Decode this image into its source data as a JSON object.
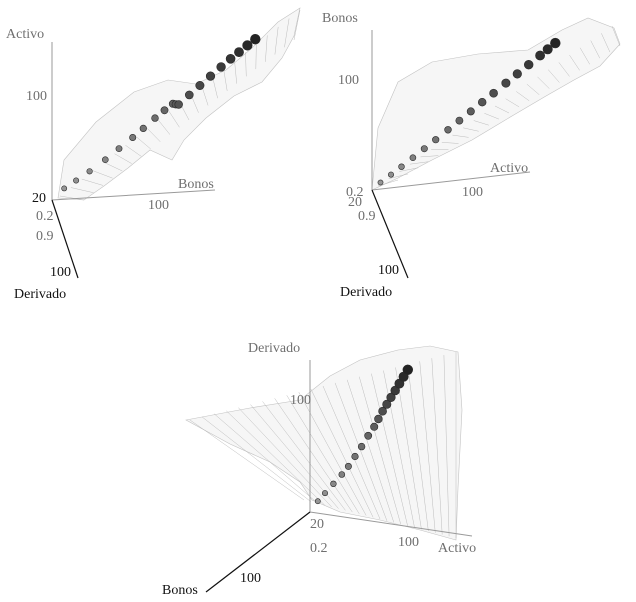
{
  "chart_data": [
    {
      "type": "scatter",
      "panel": "top-left",
      "axes": {
        "vertical": {
          "label": "Activo",
          "ticks": [
            "100",
            "20"
          ]
        },
        "right": {
          "label": "Bonos",
          "ticks": [
            "100"
          ]
        },
        "front": {
          "label": "Derivado",
          "ticks": [
            "0.2",
            "0.9",
            "100"
          ]
        }
      },
      "points": [
        {
          "x": 5,
          "y": 8,
          "z": 20
        },
        {
          "x": 12,
          "y": 10,
          "z": 22
        },
        {
          "x": 20,
          "y": 12,
          "z": 26
        },
        {
          "x": 28,
          "y": 18,
          "z": 32
        },
        {
          "x": 34,
          "y": 26,
          "z": 40
        },
        {
          "x": 40,
          "y": 34,
          "z": 48
        },
        {
          "x": 44,
          "y": 42,
          "z": 56
        },
        {
          "x": 48,
          "y": 52,
          "z": 64
        },
        {
          "x": 52,
          "y": 58,
          "z": 70
        },
        {
          "x": 56,
          "y": 62,
          "z": 74
        },
        {
          "x": 60,
          "y": 56,
          "z": 66
        },
        {
          "x": 64,
          "y": 50,
          "z": 60
        },
        {
          "x": 68,
          "y": 58,
          "z": 72
        },
        {
          "x": 72,
          "y": 66,
          "z": 82
        },
        {
          "x": 76,
          "y": 74,
          "z": 92
        },
        {
          "x": 80,
          "y": 82,
          "z": 100
        },
        {
          "x": 84,
          "y": 88,
          "z": 108
        },
        {
          "x": 88,
          "y": 92,
          "z": 114
        },
        {
          "x": 92,
          "y": 96,
          "z": 120
        },
        {
          "x": 96,
          "y": 99,
          "z": 126
        }
      ]
    },
    {
      "type": "scatter",
      "panel": "top-right",
      "axes": {
        "vertical": {
          "label": "Bonos",
          "ticks": [
            "100",
            "0.2"
          ]
        },
        "right": {
          "label": "Activo",
          "ticks": [
            "100"
          ]
        },
        "front": {
          "label": "Derivado",
          "ticks": [
            "20",
            "0.9",
            "100"
          ]
        }
      },
      "points": [
        {
          "x": 4,
          "y": 6,
          "z": 10
        },
        {
          "x": 10,
          "y": 10,
          "z": 14
        },
        {
          "x": 16,
          "y": 14,
          "z": 18
        },
        {
          "x": 22,
          "y": 20,
          "z": 24
        },
        {
          "x": 28,
          "y": 26,
          "z": 30
        },
        {
          "x": 34,
          "y": 32,
          "z": 36
        },
        {
          "x": 40,
          "y": 40,
          "z": 42
        },
        {
          "x": 46,
          "y": 46,
          "z": 50
        },
        {
          "x": 52,
          "y": 52,
          "z": 58
        },
        {
          "x": 58,
          "y": 58,
          "z": 66
        },
        {
          "x": 64,
          "y": 64,
          "z": 72
        },
        {
          "x": 70,
          "y": 72,
          "z": 80
        },
        {
          "x": 76,
          "y": 78,
          "z": 88
        },
        {
          "x": 82,
          "y": 84,
          "z": 96
        },
        {
          "x": 88,
          "y": 90,
          "z": 104
        },
        {
          "x": 92,
          "y": 94,
          "z": 110
        },
        {
          "x": 96,
          "y": 98,
          "z": 116
        }
      ]
    },
    {
      "type": "scatter",
      "panel": "bottom",
      "axes": {
        "vertical": {
          "label": "Derivado",
          "ticks": [
            "100",
            "20"
          ]
        },
        "right": {
          "label": "Activo",
          "ticks": [
            "100"
          ]
        },
        "front": {
          "label": "Bonos",
          "ticks": [
            "0.2",
            "100"
          ]
        }
      },
      "points": [
        {
          "x": 6,
          "y": 8,
          "z": 8
        },
        {
          "x": 12,
          "y": 14,
          "z": 12
        },
        {
          "x": 20,
          "y": 18,
          "z": 18
        },
        {
          "x": 28,
          "y": 22,
          "z": 24
        },
        {
          "x": 34,
          "y": 26,
          "z": 30
        },
        {
          "x": 40,
          "y": 30,
          "z": 40
        },
        {
          "x": 46,
          "y": 34,
          "z": 50
        },
        {
          "x": 52,
          "y": 38,
          "z": 62
        },
        {
          "x": 58,
          "y": 40,
          "z": 72
        },
        {
          "x": 62,
          "y": 42,
          "z": 82
        },
        {
          "x": 66,
          "y": 44,
          "z": 92
        },
        {
          "x": 70,
          "y": 46,
          "z": 100
        },
        {
          "x": 74,
          "y": 48,
          "z": 108
        },
        {
          "x": 78,
          "y": 50,
          "z": 116
        },
        {
          "x": 82,
          "y": 52,
          "z": 124
        },
        {
          "x": 86,
          "y": 54,
          "z": 132
        },
        {
          "x": 90,
          "y": 56,
          "z": 140
        }
      ]
    }
  ]
}
